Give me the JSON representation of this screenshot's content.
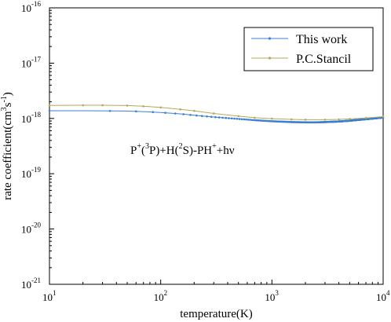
{
  "chart_data": {
    "type": "line",
    "xlabel": "temperature(K)",
    "ylabel": "rate coefficient(cm³s⁻¹)",
    "ylabel_parts": {
      "main": "rate coefficient(cm",
      "sup1": "3",
      "mid": "s",
      "sup2": "-1",
      "end": ")"
    },
    "x_scale": "log",
    "y_scale": "log",
    "xlim": [
      10,
      10000
    ],
    "ylim": [
      1e-21,
      1e-16
    ],
    "x_ticks": [
      {
        "value": 10,
        "base": "10",
        "exp": "1"
      },
      {
        "value": 100,
        "base": "10",
        "exp": "2"
      },
      {
        "value": 1000,
        "base": "10",
        "exp": "3"
      },
      {
        "value": 10000,
        "base": "10",
        "exp": "4"
      }
    ],
    "y_ticks": [
      {
        "value": 1e-21,
        "base": "10",
        "exp": "-21"
      },
      {
        "value": 1e-20,
        "base": "10",
        "exp": "-20"
      },
      {
        "value": 1e-19,
        "base": "10",
        "exp": "-19"
      },
      {
        "value": 1e-18,
        "base": "10",
        "exp": "-18"
      },
      {
        "value": 1e-17,
        "base": "10",
        "exp": "-17"
      },
      {
        "value": 1e-16,
        "base": "10",
        "exp": "-16"
      }
    ],
    "grid": false,
    "legend_position": "top-right",
    "annotation": {
      "parts": [
        "P",
        "+",
        "(",
        "3",
        "P)+H(",
        "2",
        "S)-PH",
        "+",
        "+hν"
      ],
      "sup_index": [
        1,
        3,
        5,
        7
      ]
    },
    "series": [
      {
        "name": "This work",
        "color": "#3a7fd5",
        "marker": "dot",
        "x_range": [
          10,
          10000
        ],
        "n_points": 400,
        "x": [
          10,
          20,
          30,
          50,
          70,
          100,
          150,
          200,
          300,
          500,
          700,
          1000,
          1500,
          2000,
          2500,
          3000,
          4000,
          5000,
          7000,
          10000
        ],
        "y": [
          1.38e-18,
          1.38e-18,
          1.37e-18,
          1.36e-18,
          1.33e-18,
          1.28e-18,
          1.21e-18,
          1.14e-18,
          1.06e-18,
          9.8e-19,
          9.3e-19,
          8.9e-19,
          8.6e-19,
          8.5e-19,
          8.5e-19,
          8.6e-19,
          8.8e-19,
          9.1e-19,
          9.7e-19,
          1.04e-18
        ]
      },
      {
        "name": "P.C.Stancil",
        "color": "#b4a95a",
        "marker": "dot",
        "x": [
          10,
          20,
          30,
          50,
          70,
          100,
          150,
          200,
          300,
          500,
          700,
          1000,
          1500,
          2000,
          3000,
          4000,
          5000,
          7000,
          10000
        ],
        "y": [
          1.72e-18,
          1.73e-18,
          1.73e-18,
          1.71e-18,
          1.66e-18,
          1.58e-18,
          1.46e-18,
          1.37e-18,
          1.23e-18,
          1.1e-18,
          1.03e-18,
          9.9e-19,
          9.6e-19,
          9.5e-19,
          9.5e-19,
          9.6e-19,
          9.8e-19,
          1.02e-18,
          1.08e-18
        ]
      }
    ]
  }
}
